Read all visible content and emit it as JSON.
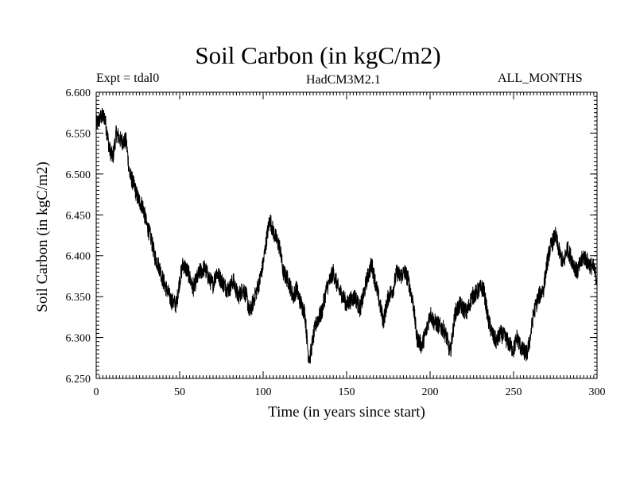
{
  "chart_data": {
    "type": "line",
    "title": "Soil Carbon (in kgC/m2)",
    "subtitle_left": "Expt = tdal0",
    "subtitle_center": "HadCM3M2.1",
    "subtitle_right": "ALL_MONTHS",
    "xlabel": "Time (in years since start)",
    "ylabel": "Soil Carbon (in kgC/m2)",
    "xlim": [
      0,
      300
    ],
    "ylim": [
      6.25,
      6.6
    ],
    "x_ticks": [
      0,
      50,
      100,
      150,
      200,
      250,
      300
    ],
    "x_tick_labels": [
      "0",
      "50",
      "100",
      "150",
      "200",
      "250",
      "300"
    ],
    "y_ticks": [
      6.25,
      6.3,
      6.35,
      6.4,
      6.45,
      6.5,
      6.55,
      6.6
    ],
    "y_tick_labels": [
      "6.250",
      "6.300",
      "6.350",
      "6.400",
      "6.450",
      "6.500",
      "6.550",
      "6.600"
    ],
    "grid": false,
    "series": [
      {
        "name": "Soil Carbon",
        "color": "#000000",
        "x": [
          0,
          3,
          5,
          8,
          10,
          12,
          15,
          18,
          20,
          22,
          25,
          28,
          30,
          33,
          35,
          38,
          40,
          42,
          45,
          48,
          50,
          52,
          55,
          58,
          60,
          62,
          65,
          68,
          70,
          72,
          75,
          78,
          80,
          82,
          85,
          88,
          90,
          92,
          95,
          98,
          100,
          102,
          104,
          106,
          108,
          110,
          112,
          115,
          118,
          120,
          122,
          125,
          127,
          128,
          130,
          132,
          135,
          138,
          140,
          142,
          145,
          148,
          150,
          152,
          155,
          158,
          160,
          162,
          165,
          168,
          170,
          172,
          175,
          178,
          180,
          182,
          185,
          187,
          190,
          192,
          195,
          198,
          200,
          202,
          205,
          208,
          210,
          212,
          215,
          218,
          220,
          222,
          225,
          228,
          230,
          232,
          235,
          238,
          240,
          242,
          245,
          248,
          250,
          252,
          255,
          258,
          260,
          262,
          265,
          268,
          270,
          272,
          275,
          278,
          280,
          282,
          285,
          288,
          290,
          292,
          295,
          298,
          300
        ],
        "values": [
          6.56,
          6.57,
          6.57,
          6.53,
          6.52,
          6.55,
          6.54,
          6.54,
          6.5,
          6.49,
          6.47,
          6.46,
          6.44,
          6.42,
          6.4,
          6.385,
          6.37,
          6.36,
          6.345,
          6.34,
          6.37,
          6.39,
          6.38,
          6.36,
          6.37,
          6.38,
          6.385,
          6.37,
          6.365,
          6.38,
          6.37,
          6.36,
          6.36,
          6.37,
          6.35,
          6.36,
          6.35,
          6.33,
          6.35,
          6.37,
          6.39,
          6.42,
          6.445,
          6.43,
          6.42,
          6.41,
          6.38,
          6.37,
          6.35,
          6.36,
          6.345,
          6.33,
          6.28,
          6.275,
          6.3,
          6.32,
          6.33,
          6.36,
          6.37,
          6.38,
          6.36,
          6.35,
          6.34,
          6.345,
          6.35,
          6.335,
          6.35,
          6.37,
          6.39,
          6.36,
          6.34,
          6.32,
          6.35,
          6.36,
          6.38,
          6.375,
          6.38,
          6.37,
          6.34,
          6.3,
          6.29,
          6.31,
          6.33,
          6.32,
          6.315,
          6.31,
          6.3,
          6.28,
          6.33,
          6.34,
          6.335,
          6.33,
          6.35,
          6.355,
          6.36,
          6.36,
          6.32,
          6.3,
          6.295,
          6.305,
          6.3,
          6.29,
          6.285,
          6.3,
          6.285,
          6.28,
          6.3,
          6.33,
          6.35,
          6.36,
          6.39,
          6.41,
          6.425,
          6.4,
          6.39,
          6.41,
          6.395,
          6.38,
          6.39,
          6.4,
          6.39,
          6.385,
          6.37
        ]
      }
    ]
  }
}
